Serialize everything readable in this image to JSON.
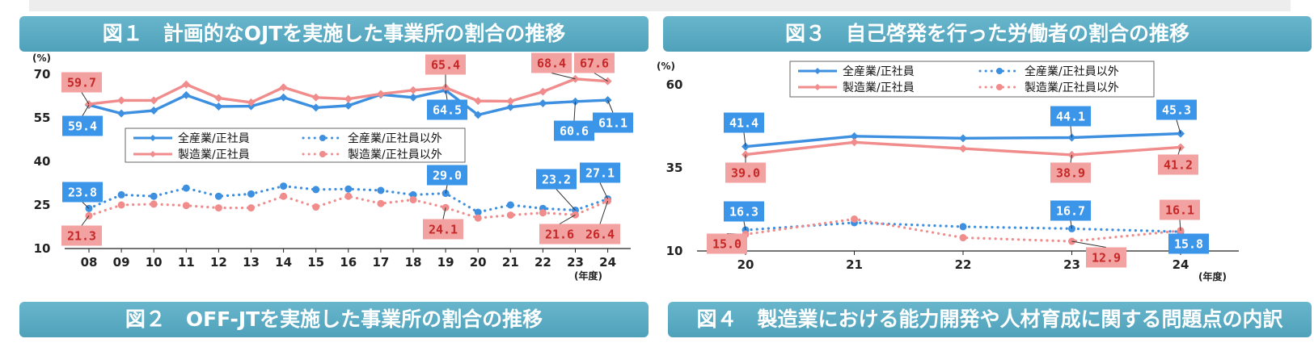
{
  "banners": {
    "fig1": "図１　計画的なOJTを実施した事業所の割合の推移",
    "fig2": "図２　OFF-JTを実施した事業所の割合の推移",
    "fig3": "図３　自己啓発を行った労働者の割合の推移",
    "fig4": "図４　製造業における能力開発や人材育成に関する問題点の内訳"
  },
  "colors": {
    "blue": "#3d8fe0",
    "pink": "#f08c8c",
    "blue_label_bg": "#3b95e8",
    "pink_label_bg": "#f3a2a2"
  },
  "chart_data": [
    {
      "type": "line",
      "title": "図１　計画的なOJTを実施した事業所の割合の推移",
      "ylabel": "(%)",
      "xlabel": "(年度)",
      "ylim": [
        10,
        70
      ],
      "yticks": [
        10,
        25,
        40,
        55,
        70
      ],
      "categories": [
        "08",
        "09",
        "10",
        "11",
        "12",
        "13",
        "14",
        "15",
        "16",
        "17",
        "18",
        "19",
        "20",
        "21",
        "22",
        "23",
        "24"
      ],
      "legend_position": "middle-right",
      "grid": false,
      "series": [
        {
          "name": "全産業/正社員",
          "style": "solid",
          "color": "blue",
          "values": [
            59.4,
            56.5,
            57.5,
            62.8,
            58.9,
            59.0,
            62.0,
            58.5,
            59.2,
            63.0,
            62.0,
            64.5,
            56.0,
            58.7,
            60.0,
            60.6,
            61.1
          ]
        },
        {
          "name": "製造業/正社員",
          "style": "solid",
          "color": "pink",
          "values": [
            59.7,
            61.0,
            61.0,
            66.5,
            61.8,
            60.3,
            65.5,
            62.0,
            61.5,
            63.2,
            64.5,
            65.4,
            60.8,
            60.7,
            64.0,
            68.4,
            67.6
          ]
        },
        {
          "name": "全産業/正社員以外",
          "style": "dotted",
          "color": "blue",
          "values": [
            23.8,
            28.5,
            28.0,
            30.8,
            28.0,
            28.8,
            31.5,
            30.3,
            30.5,
            30.0,
            28.5,
            29.0,
            22.5,
            25.0,
            23.8,
            23.2,
            27.1
          ]
        },
        {
          "name": "製造業/正社員以外",
          "style": "dotted",
          "color": "pink",
          "values": [
            21.3,
            25.0,
            25.3,
            24.8,
            24.0,
            24.0,
            28.0,
            24.3,
            28.0,
            25.5,
            26.8,
            24.1,
            20.5,
            21.5,
            22.3,
            21.6,
            26.4
          ]
        }
      ],
      "labels": [
        {
          "series": 0,
          "index": 0,
          "text": "59.4",
          "color": "blue"
        },
        {
          "series": 1,
          "index": 0,
          "text": "59.7",
          "color": "pink"
        },
        {
          "series": 1,
          "index": 11,
          "text": "65.4",
          "color": "pink"
        },
        {
          "series": 0,
          "index": 11,
          "text": "64.5",
          "color": "blue"
        },
        {
          "series": 1,
          "index": 15,
          "text": "68.4",
          "color": "pink"
        },
        {
          "series": 1,
          "index": 16,
          "text": "67.6",
          "color": "pink"
        },
        {
          "series": 0,
          "index": 15,
          "text": "60.6",
          "color": "blue"
        },
        {
          "series": 0,
          "index": 16,
          "text": "61.1",
          "color": "blue"
        },
        {
          "series": 2,
          "index": 0,
          "text": "23.8",
          "color": "blue"
        },
        {
          "series": 3,
          "index": 0,
          "text": "21.3",
          "color": "pink"
        },
        {
          "series": 2,
          "index": 11,
          "text": "29.0",
          "color": "blue"
        },
        {
          "series": 3,
          "index": 11,
          "text": "24.1",
          "color": "pink"
        },
        {
          "series": 2,
          "index": 15,
          "text": "23.2",
          "color": "blue"
        },
        {
          "series": 3,
          "index": 15,
          "text": "21.6",
          "color": "pink"
        },
        {
          "series": 2,
          "index": 16,
          "text": "27.1",
          "color": "blue"
        },
        {
          "series": 3,
          "index": 16,
          "text": "26.4",
          "color": "pink"
        }
      ]
    },
    {
      "type": "line",
      "title": "図３　自己啓発を行った労働者の割合の推移",
      "ylabel": "(%)",
      "xlabel": "(年度)",
      "ylim": [
        10,
        60
      ],
      "yticks": [
        10,
        35,
        60
      ],
      "categories": [
        "20",
        "21",
        "22",
        "23",
        "24"
      ],
      "legend_position": "top",
      "grid": false,
      "series": [
        {
          "name": "全産業/正社員",
          "style": "solid",
          "color": "blue",
          "values": [
            41.4,
            44.5,
            43.9,
            44.1,
            45.3
          ]
        },
        {
          "name": "製造業/正社員",
          "style": "solid",
          "color": "pink",
          "values": [
            39.0,
            42.7,
            40.8,
            38.9,
            41.2
          ]
        },
        {
          "name": "全産業/正社員以外",
          "style": "dotted",
          "color": "blue",
          "values": [
            16.3,
            18.5,
            17.3,
            16.7,
            15.8
          ]
        },
        {
          "name": "製造業/正社員以外",
          "style": "dotted",
          "color": "pink",
          "values": [
            15.0,
            19.6,
            14.0,
            12.9,
            16.1
          ]
        }
      ],
      "labels": [
        {
          "series": 0,
          "index": 0,
          "text": "41.4",
          "color": "blue"
        },
        {
          "series": 1,
          "index": 0,
          "text": "39.0",
          "color": "pink"
        },
        {
          "series": 0,
          "index": 3,
          "text": "44.1",
          "color": "blue"
        },
        {
          "series": 1,
          "index": 3,
          "text": "38.9",
          "color": "pink"
        },
        {
          "series": 0,
          "index": 4,
          "text": "45.3",
          "color": "blue"
        },
        {
          "series": 1,
          "index": 4,
          "text": "41.2",
          "color": "pink"
        },
        {
          "series": 2,
          "index": 0,
          "text": "16.3",
          "color": "blue"
        },
        {
          "series": 3,
          "index": 0,
          "text": "15.0",
          "color": "pink"
        },
        {
          "series": 2,
          "index": 3,
          "text": "16.7",
          "color": "blue"
        },
        {
          "series": 3,
          "index": 3,
          "text": "12.9",
          "color": "pink"
        },
        {
          "series": 3,
          "index": 4,
          "text": "16.1",
          "color": "pink"
        },
        {
          "series": 2,
          "index": 4,
          "text": "15.8",
          "color": "blue"
        }
      ]
    }
  ]
}
